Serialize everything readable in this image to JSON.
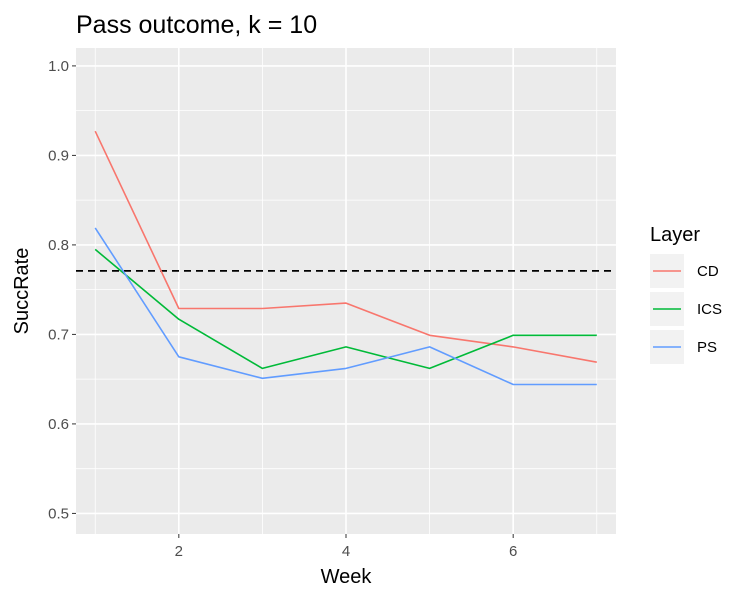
{
  "chart_data": {
    "type": "line",
    "title": "Pass outcome, k = 10",
    "xlabel": "Week",
    "ylabel": "SuccRate",
    "xlim": [
      0.77,
      7.23
    ],
    "ylim": [
      0.477,
      1.02
    ],
    "x_ticks": [
      2,
      4,
      6
    ],
    "x_tick_labels": [
      "2",
      "4",
      "6"
    ],
    "y_ticks": [
      0.5,
      0.6,
      0.7,
      0.8,
      0.9,
      1.0
    ],
    "y_tick_labels": [
      "0.5",
      "0.6",
      "0.7",
      "0.8",
      "0.9",
      "1.0"
    ],
    "x": [
      1,
      2,
      3,
      4,
      5,
      6,
      7
    ],
    "series": [
      {
        "name": "CD",
        "color": "#F8766D",
        "values": [
          0.927,
          0.729,
          0.729,
          0.735,
          0.699,
          0.686,
          0.669
        ]
      },
      {
        "name": "ICS",
        "color": "#00BA38",
        "values": [
          0.795,
          0.717,
          0.662,
          0.686,
          0.662,
          0.699,
          0.699
        ]
      },
      {
        "name": "PS",
        "color": "#619CFF",
        "values": [
          0.819,
          0.675,
          0.651,
          0.662,
          0.686,
          0.644,
          0.644
        ]
      }
    ],
    "hline": {
      "y": 0.771,
      "style": "dashed",
      "color": "#000000"
    },
    "legend": {
      "title": "Layer",
      "position": "right"
    },
    "grid": true,
    "panel_background": "#EBEBEB"
  }
}
